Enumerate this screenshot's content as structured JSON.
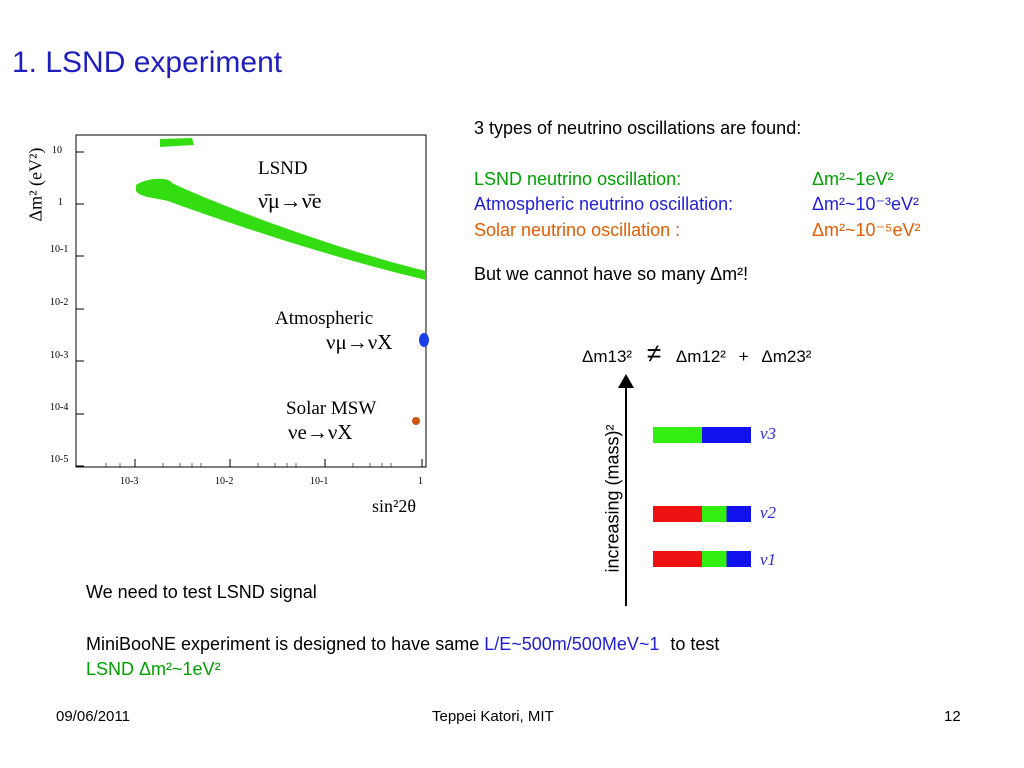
{
  "slide": {
    "title": "1. LSND experiment",
    "footer": {
      "date": "09/06/2011",
      "author": "Teppei Katori, MIT",
      "page": "12"
    }
  },
  "plot": {
    "y_axis_label": "Δm² (eV²)",
    "y_ticks": [
      "10",
      "1",
      "10-1",
      "10-2",
      "10-3",
      "10-4",
      "10-5"
    ],
    "x_ticks": [
      "10-3",
      "10-2",
      "10-1",
      "1"
    ],
    "x_axis_label": "sin²2θ",
    "regions": {
      "lsnd": {
        "name": "LSND",
        "channel": "ν̄μ→ν̄e",
        "color": "#33dd11"
      },
      "atmospheric": {
        "name": "Atmospheric",
        "channel": "νμ→νX",
        "color": "#1a3fe6"
      },
      "solar": {
        "name": "Solar MSW",
        "channel": "νe→νX",
        "color": "#cc5511"
      }
    }
  },
  "findings": {
    "intro": "3 types of neutrino oscillations are found:",
    "lsnd_label": "LSND neutrino oscillation:",
    "lsnd_value": "Δm²~1eV²",
    "atm_label": "Atmospheric neutrino oscillation:",
    "atm_value": "Δm²~10⁻³eV²",
    "solar_label": "Solar neutrino oscillation :",
    "solar_value": "Δm²~10⁻⁵eV²",
    "conclusion": "But we cannot have so many Δm²!"
  },
  "mass_diagram": {
    "equation": {
      "lhs": "Δm13²",
      "op": "≠",
      "a": "Δm12²",
      "plus": "+",
      "b": "Δm23²"
    },
    "axis_label": "increasing (mass)²",
    "levels": [
      {
        "label": "ν3",
        "red": 0,
        "green": 0.5,
        "blue": 0.5
      },
      {
        "label": "ν2",
        "red": 0.5,
        "green": 0.25,
        "blue": 0.25
      },
      {
        "label": "ν1",
        "red": 0.5,
        "green": 0.25,
        "blue": 0.25
      }
    ],
    "colors": {
      "red": "#ee1111",
      "green": "#33ee11",
      "blue": "#1111ee"
    }
  },
  "bottom": {
    "need": "We need to test LSND signal",
    "line1_prefix": "MiniBooNE experiment is designed to have same",
    "line1_highlight": "L/E~500m/500MeV~1",
    "line1_suffix": "to test",
    "line2": "LSND Δm²~1eV²"
  }
}
